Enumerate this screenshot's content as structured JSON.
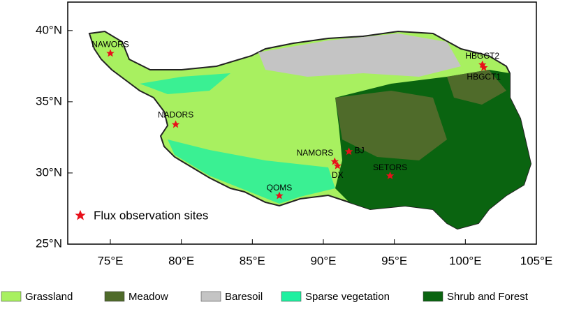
{
  "map": {
    "xlim": [
      72,
      105
    ],
    "ylim": [
      25,
      42
    ],
    "xticks": [
      {
        "value": 75,
        "label": "75°E"
      },
      {
        "value": 80,
        "label": "80°E"
      },
      {
        "value": 85,
        "label": "85°E"
      },
      {
        "value": 90,
        "label": "90°E"
      },
      {
        "value": 95,
        "label": "95°E"
      },
      {
        "value": 100,
        "label": "100°E"
      },
      {
        "value": 105,
        "label": "105°E"
      }
    ],
    "yticks": [
      {
        "value": 25,
        "label": "25°N"
      },
      {
        "value": 30,
        "label": "30°N"
      },
      {
        "value": 35,
        "label": "35°N"
      },
      {
        "value": 40,
        "label": "40°N"
      }
    ],
    "sites": [
      {
        "name": "NAWORS",
        "lon": 75.0,
        "lat": 38.4
      },
      {
        "name": "NADORS",
        "lon": 79.6,
        "lat": 33.4
      },
      {
        "name": "QOMS",
        "lon": 86.9,
        "lat": 28.4
      },
      {
        "name": "NAMORS",
        "lon": 90.8,
        "lat": 30.8
      },
      {
        "name": "BJ",
        "lon": 91.8,
        "lat": 31.5
      },
      {
        "name": "DX",
        "lon": 91.0,
        "lat": 30.5
      },
      {
        "name": "SETORS",
        "lon": 94.7,
        "lat": 29.8
      },
      {
        "name": "HBGCT2",
        "lon": 101.2,
        "lat": 37.6
      },
      {
        "name": "HBGCT1",
        "lon": 101.3,
        "lat": 37.4
      }
    ],
    "marker_legend": "Flux observation sites",
    "legend": [
      {
        "name": "Grassland",
        "color": "#a8f060"
      },
      {
        "name": "Meadow",
        "color": "#4f6b2a"
      },
      {
        "name": "Baresoil",
        "color": "#c4c4c4"
      },
      {
        "name": "Sparse vegetation",
        "color": "#1ef0a0"
      },
      {
        "name": "Shrub and Forest",
        "color": "#0a6410"
      }
    ]
  }
}
